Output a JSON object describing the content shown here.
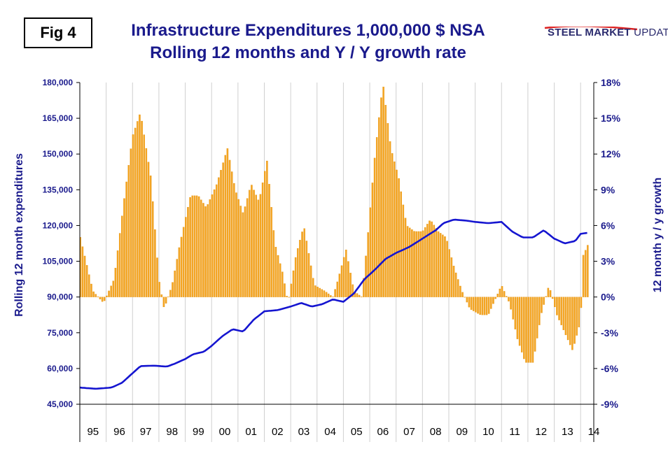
{
  "figure_label": "Fig 4",
  "title_line1": "Infrastructure Expenditures 1,000,000 $ NSA",
  "title_line2": "Rolling 12 months and Y / Y growth rate",
  "logo": {
    "bold": "STEEL MARKET",
    "light": " UPDATE"
  },
  "colors": {
    "bars": "#f5a623",
    "line": "#1515d0",
    "text": "#1a1a8c",
    "grid": "#d0d0d0"
  },
  "chart_data": {
    "type": "bar+line",
    "ylabel_left": "Rolling 12 month expenditures",
    "ylabel_right": "12 month y / y growth",
    "ylim_left": [
      45000,
      180000
    ],
    "ylim_right": [
      -9,
      18
    ],
    "yticks_left": [
      "45,000",
      "60,000",
      "75,000",
      "90,000",
      "105,000",
      "120,000",
      "135,000",
      "150,000",
      "165,000",
      "180,000"
    ],
    "yticks_right": [
      "-9%",
      "-6%",
      "-3%",
      "0%",
      "3%",
      "6%",
      "9%",
      "12%",
      "15%",
      "18%"
    ],
    "x_categories": [
      "95",
      "96",
      "97",
      "98",
      "99",
      "00",
      "01",
      "02",
      "03",
      "04",
      "05",
      "06",
      "07",
      "08",
      "09",
      "10",
      "11",
      "12",
      "13",
      "14"
    ],
    "grid": "vertical lines between years",
    "series": [
      {
        "name": "12 month y / y growth",
        "kind": "bar",
        "axis": "right",
        "annual_points": [
          [
            1995.0,
            5.2
          ],
          [
            1995.5,
            0.5
          ],
          [
            1995.9,
            -0.5
          ],
          [
            1996.3,
            1.5
          ],
          [
            1996.7,
            8.5
          ],
          [
            1997.0,
            13.5
          ],
          [
            1997.3,
            15.5
          ],
          [
            1997.7,
            10.0
          ],
          [
            1998.0,
            1.5
          ],
          [
            1998.2,
            -1.0
          ],
          [
            1998.5,
            1.0
          ],
          [
            1998.8,
            4.5
          ],
          [
            1999.2,
            8.5
          ],
          [
            1999.5,
            8.5
          ],
          [
            1999.8,
            7.5
          ],
          [
            2000.2,
            9.5
          ],
          [
            2000.6,
            12.5
          ],
          [
            2000.9,
            9.0
          ],
          [
            2001.2,
            7.0
          ],
          [
            2001.5,
            9.5
          ],
          [
            2001.8,
            8.0
          ],
          [
            2002.1,
            11.5
          ],
          [
            2002.4,
            4.5
          ],
          [
            2002.7,
            2.0
          ],
          [
            2002.9,
            -0.5
          ],
          [
            2003.2,
            3.5
          ],
          [
            2003.5,
            6.0
          ],
          [
            2003.9,
            1.0
          ],
          [
            2004.3,
            0.5
          ],
          [
            2004.6,
            0.0
          ],
          [
            2004.8,
            1.5
          ],
          [
            2005.1,
            4.0
          ],
          [
            2005.4,
            0.5
          ],
          [
            2005.7,
            0.0
          ],
          [
            2005.9,
            4.5
          ],
          [
            2006.2,
            12.0
          ],
          [
            2006.5,
            18.0
          ],
          [
            2006.8,
            12.5
          ],
          [
            2007.1,
            10.0
          ],
          [
            2007.4,
            6.0
          ],
          [
            2007.7,
            5.5
          ],
          [
            2008.0,
            5.5
          ],
          [
            2008.3,
            6.5
          ],
          [
            2008.6,
            5.5
          ],
          [
            2008.9,
            5.0
          ],
          [
            2009.2,
            2.5
          ],
          [
            2009.5,
            0.5
          ],
          [
            2009.8,
            -1.0
          ],
          [
            2010.2,
            -1.5
          ],
          [
            2010.5,
            -1.5
          ],
          [
            2010.8,
            0.0
          ],
          [
            2011.0,
            1.0
          ],
          [
            2011.3,
            -0.5
          ],
          [
            2011.6,
            -3.5
          ],
          [
            2011.9,
            -5.5
          ],
          [
            2012.2,
            -5.5
          ],
          [
            2012.5,
            -1.5
          ],
          [
            2012.8,
            1.0
          ],
          [
            2013.1,
            -1.5
          ],
          [
            2013.4,
            -3.0
          ],
          [
            2013.7,
            -4.5
          ],
          [
            2014.0,
            -2.0
          ],
          [
            2014.1,
            3.5
          ],
          [
            2014.3,
            4.5
          ]
        ]
      },
      {
        "name": "Rolling 12 month expenditures",
        "kind": "line",
        "axis": "left",
        "annual_points": [
          [
            1995.0,
            52000
          ],
          [
            1995.6,
            51500
          ],
          [
            1996.2,
            52000
          ],
          [
            1996.6,
            54000
          ],
          [
            1997.0,
            58000
          ],
          [
            1997.3,
            61000
          ],
          [
            1997.8,
            61200
          ],
          [
            1998.3,
            60800
          ],
          [
            1998.6,
            62000
          ],
          [
            1999.0,
            64000
          ],
          [
            1999.3,
            66000
          ],
          [
            1999.7,
            67000
          ],
          [
            2000.0,
            69500
          ],
          [
            2000.4,
            73500
          ],
          [
            2000.8,
            76500
          ],
          [
            2001.2,
            75500
          ],
          [
            2001.6,
            80500
          ],
          [
            2002.0,
            84000
          ],
          [
            2002.5,
            84500
          ],
          [
            2003.0,
            86000
          ],
          [
            2003.4,
            87500
          ],
          [
            2003.8,
            86000
          ],
          [
            2004.2,
            87000
          ],
          [
            2004.6,
            89000
          ],
          [
            2005.0,
            88000
          ],
          [
            2005.4,
            91500
          ],
          [
            2005.8,
            97500
          ],
          [
            2006.2,
            101500
          ],
          [
            2006.6,
            106000
          ],
          [
            2007.0,
            108500
          ],
          [
            2007.5,
            111000
          ],
          [
            2008.0,
            114500
          ],
          [
            2008.5,
            118000
          ],
          [
            2008.8,
            121000
          ],
          [
            2009.2,
            122500
          ],
          [
            2009.7,
            122000
          ],
          [
            2010.0,
            121500
          ],
          [
            2010.5,
            121000
          ],
          [
            2011.0,
            121500
          ],
          [
            2011.4,
            117500
          ],
          [
            2011.8,
            115000
          ],
          [
            2012.2,
            115000
          ],
          [
            2012.6,
            118000
          ],
          [
            2013.0,
            114500
          ],
          [
            2013.4,
            112500
          ],
          [
            2013.8,
            113500
          ],
          [
            2014.0,
            116500
          ],
          [
            2014.3,
            117000
          ]
        ]
      }
    ]
  }
}
